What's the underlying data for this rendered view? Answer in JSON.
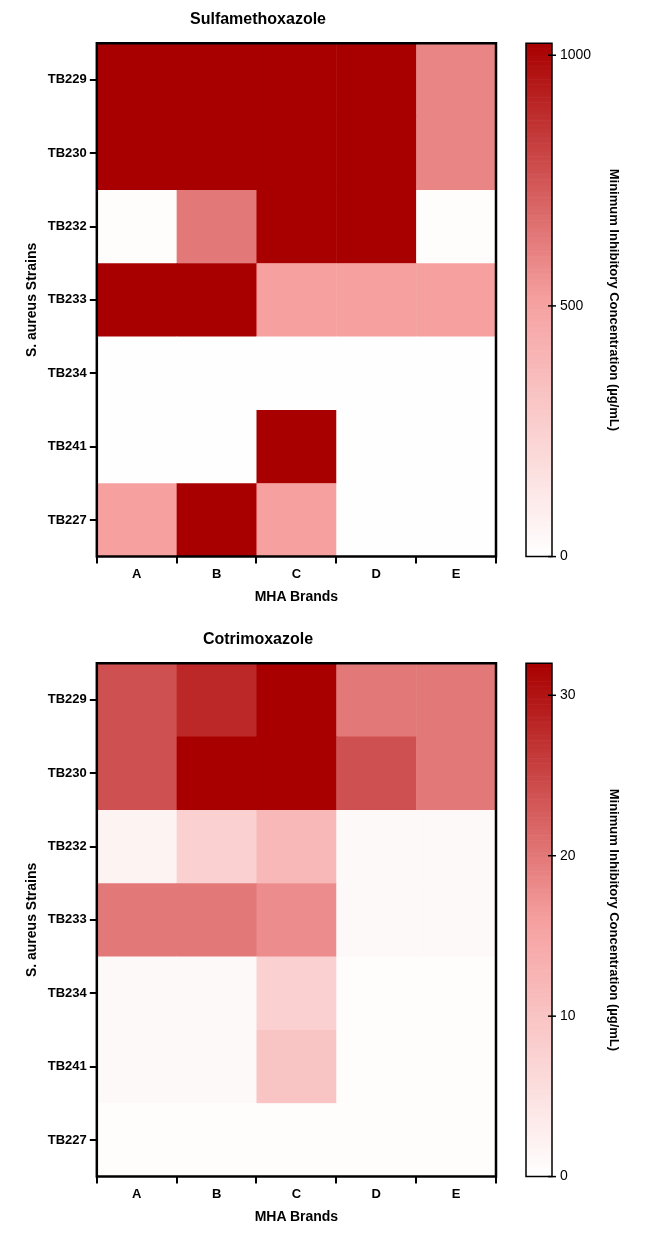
{
  "chart_data": [
    {
      "type": "heatmap",
      "title": "Sulfamethoxazole",
      "xlabel": "MHA Brands",
      "ylabel": "S. aureus Strains",
      "clabel": "Minimum Inhibitory Concentration (µg/mL)",
      "categories": [
        "A",
        "B",
        "C",
        "D",
        "E"
      ],
      "y_categories": [
        "TB229",
        "TB230",
        "TB232",
        "TB233",
        "TB234",
        "TB241",
        "TB227"
      ],
      "cells": [
        [
          1024,
          1024,
          1024,
          1024,
          600
        ],
        [
          1024,
          1024,
          1024,
          1024,
          600
        ],
        [
          16,
          640,
          1024,
          1024,
          16
        ],
        [
          1024,
          1024,
          512,
          512,
          512
        ],
        [
          8,
          8,
          8,
          8,
          8
        ],
        [
          8,
          8,
          1024,
          8,
          8
        ],
        [
          512,
          1024,
          512,
          8,
          8
        ]
      ],
      "clim": [
        0,
        1024
      ],
      "cticks": [
        0,
        500,
        1000
      ]
    },
    {
      "type": "heatmap",
      "title": "Cotrimoxazole",
      "xlabel": "MHA Brands",
      "ylabel": "S. aureus Strains",
      "clabel": "Minimum Inhibitory Concentration (µg/mL)",
      "categories": [
        "A",
        "B",
        "C",
        "D",
        "E"
      ],
      "y_categories": [
        "TB229",
        "TB230",
        "TB232",
        "TB233",
        "TB234",
        "TB241",
        "TB227"
      ],
      "cells": [
        [
          24,
          28,
          32,
          20,
          20
        ],
        [
          24,
          32,
          32,
          24,
          20
        ],
        [
          2,
          8,
          12,
          1,
          1
        ],
        [
          20,
          20,
          18,
          1,
          1
        ],
        [
          1,
          1,
          8,
          0.5,
          0.5
        ],
        [
          1,
          1,
          10,
          0.5,
          0.5
        ],
        [
          0.5,
          0.5,
          0.5,
          0.5,
          0.5
        ]
      ],
      "clim": [
        0,
        32
      ],
      "cticks": [
        0,
        10,
        20,
        30
      ]
    }
  ]
}
